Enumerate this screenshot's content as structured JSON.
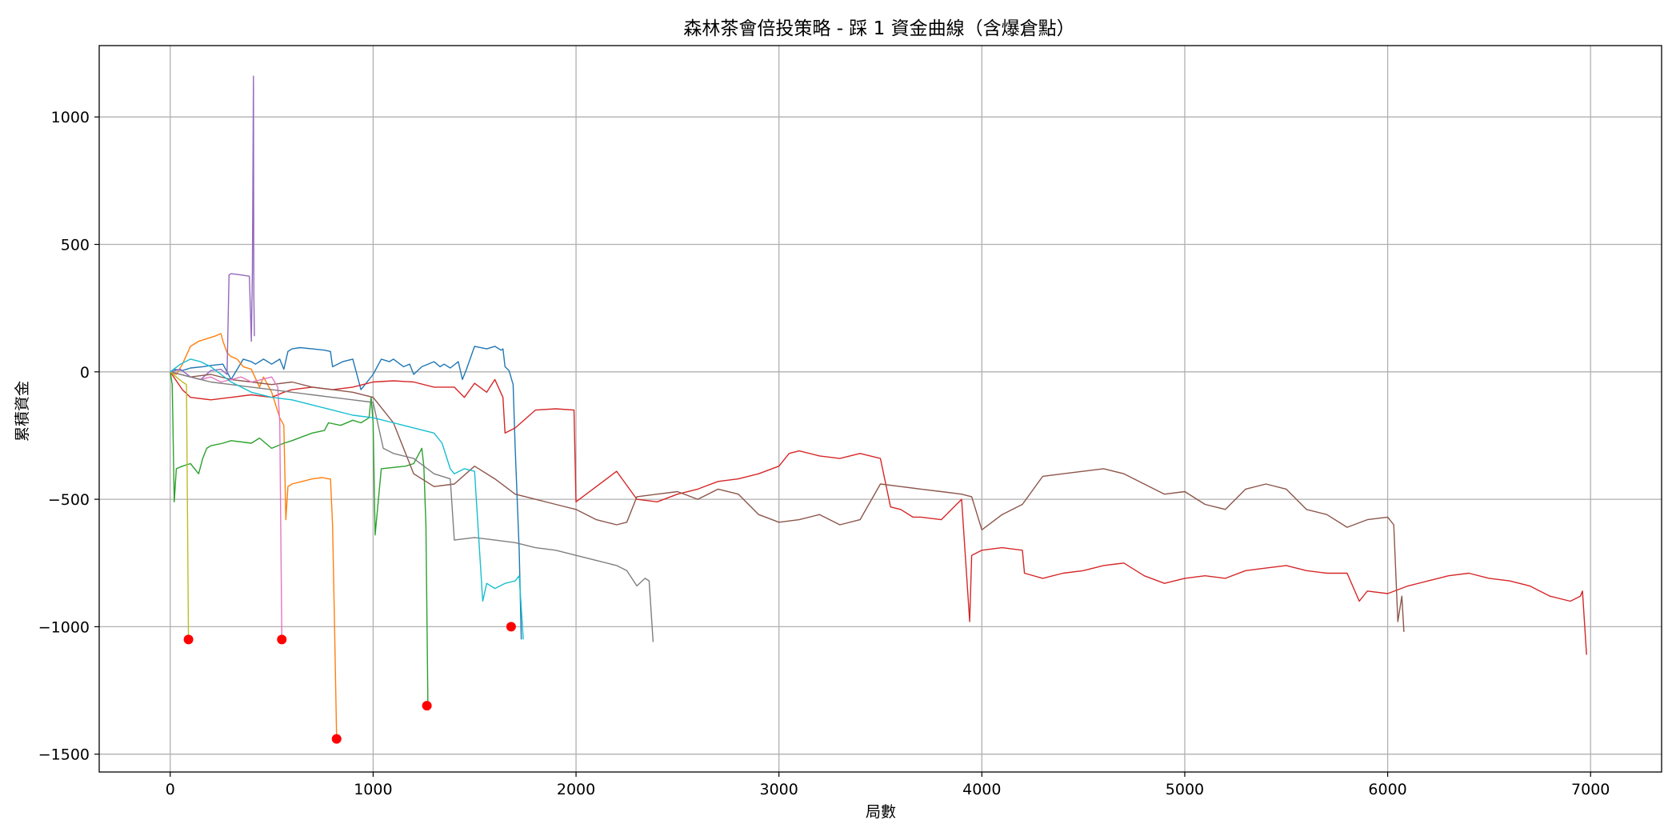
{
  "chart_data": {
    "type": "line",
    "title": "森林茶會倍投策略 - 踩 1 資金曲線（含爆倉點）",
    "xlabel": "局數",
    "ylabel": "累積資金",
    "xlim": [
      -350,
      7350
    ],
    "ylim": [
      -1570,
      1280
    ],
    "x_ticks": [
      0,
      1000,
      2000,
      3000,
      4000,
      5000,
      6000,
      7000
    ],
    "y_ticks": [
      -1500,
      -1000,
      -500,
      0,
      500,
      1000
    ],
    "grid": true,
    "legend": "none",
    "series": [
      {
        "color": "#1f77b4",
        "x": [
          0,
          20,
          60,
          100,
          160,
          200,
          260,
          300,
          360,
          400,
          420,
          460,
          500,
          540,
          560,
          580,
          600,
          640,
          700,
          760,
          790,
          800,
          850,
          900,
          940,
          1000,
          1040,
          1080,
          1100,
          1150,
          1180,
          1200,
          1240,
          1300,
          1330,
          1350,
          1380,
          1420,
          1440,
          1460,
          1500,
          1560,
          1600,
          1630,
          1640,
          1650,
          1670,
          1690,
          1700,
          1720,
          1730
        ],
        "y": [
          0,
          10,
          5,
          15,
          20,
          25,
          30,
          -30,
          50,
          40,
          30,
          50,
          30,
          50,
          10,
          80,
          90,
          95,
          90,
          85,
          80,
          20,
          40,
          50,
          -70,
          -10,
          50,
          40,
          50,
          20,
          30,
          -10,
          20,
          40,
          20,
          30,
          15,
          40,
          -30,
          10,
          100,
          90,
          100,
          85,
          90,
          20,
          5,
          -50,
          -300,
          -700,
          -1050
        ]
      },
      {
        "color": "#ff7f0e",
        "x": [
          0,
          30,
          60,
          100,
          140,
          180,
          220,
          250,
          260,
          280,
          300,
          330,
          360,
          400,
          440,
          460,
          500,
          540,
          560,
          570,
          580,
          600,
          650,
          700,
          750,
          780,
          790,
          800,
          810,
          820
        ],
        "y": [
          0,
          -10,
          30,
          100,
          120,
          130,
          140,
          150,
          120,
          75,
          60,
          50,
          20,
          10,
          -60,
          -20,
          -80,
          -180,
          -210,
          -580,
          -450,
          -440,
          -430,
          -420,
          -415,
          -420,
          -420,
          -600,
          -1000,
          -1440
        ]
      },
      {
        "color": "#2ca02c",
        "x": [
          0,
          10,
          20,
          30,
          60,
          100,
          140,
          160,
          180,
          200,
          260,
          300,
          400,
          440,
          500,
          560,
          600,
          700,
          760,
          780,
          840,
          900,
          940,
          980,
          990,
          1000,
          1010,
          1040,
          1100,
          1160,
          1200,
          1240,
          1250,
          1260,
          1270
        ],
        "y": [
          0,
          -50,
          -510,
          -380,
          -370,
          -360,
          -400,
          -340,
          -300,
          -290,
          -280,
          -270,
          -280,
          -260,
          -300,
          -280,
          -270,
          -240,
          -230,
          -200,
          -210,
          -190,
          -200,
          -180,
          -100,
          -200,
          -640,
          -380,
          -375,
          -370,
          -360,
          -300,
          -370,
          -600,
          -1310
        ]
      },
      {
        "color": "#d62728",
        "x": [
          0,
          60,
          100,
          200,
          300,
          400,
          500,
          560,
          600,
          700,
          800,
          900,
          950,
          1000,
          1100,
          1200,
          1300,
          1400,
          1450,
          1500,
          1560,
          1600,
          1640,
          1650,
          1700,
          1800,
          1900,
          1990,
          2000,
          2100,
          2200,
          2300,
          2400,
          2500,
          2600,
          2700,
          2800,
          2900,
          3000,
          3050,
          3100,
          3200,
          3300,
          3400,
          3500,
          3550,
          3600,
          3660,
          3700,
          3800,
          3900,
          3940,
          3950,
          4000,
          4100,
          4200,
          4210,
          4300,
          4400,
          4500,
          4600,
          4700,
          4800,
          4900,
          5000,
          5100,
          5200,
          5300,
          5400,
          5500,
          5600,
          5700,
          5800,
          5860,
          5900,
          6000,
          6100,
          6200,
          6300,
          6400,
          6500,
          6600,
          6700,
          6800,
          6900,
          6950,
          6960,
          6980
        ],
        "y": [
          0,
          -70,
          -100,
          -110,
          -100,
          -90,
          -100,
          -80,
          -70,
          -60,
          -70,
          -60,
          -50,
          -40,
          -35,
          -40,
          -60,
          -60,
          -100,
          -45,
          -80,
          -30,
          -100,
          -240,
          -220,
          -150,
          -145,
          -150,
          -510,
          -450,
          -390,
          -500,
          -510,
          -480,
          -460,
          -430,
          -420,
          -400,
          -370,
          -320,
          -310,
          -330,
          -340,
          -320,
          -340,
          -530,
          -540,
          -570,
          -570,
          -580,
          -500,
          -980,
          -720,
          -700,
          -690,
          -700,
          -790,
          -810,
          -790,
          -780,
          -760,
          -750,
          -800,
          -830,
          -810,
          -800,
          -810,
          -780,
          -770,
          -760,
          -780,
          -790,
          -790,
          -900,
          -860,
          -870,
          -840,
          -820,
          -800,
          -790,
          -810,
          -820,
          -840,
          -880,
          -900,
          -880,
          -860,
          -1110
        ]
      },
      {
        "color": "#9467bd",
        "x": [
          0,
          50,
          100,
          150,
          200,
          250,
          280,
          290,
          300,
          350,
          390,
          400,
          405,
          410,
          412,
          415
        ],
        "y": [
          0,
          10,
          -20,
          -30,
          5,
          10,
          -10,
          380,
          385,
          380,
          375,
          120,
          400,
          1160,
          300,
          140
        ]
      },
      {
        "color": "#8c564b",
        "x": [
          0,
          50,
          100,
          200,
          300,
          400,
          500,
          600,
          700,
          800,
          900,
          1000,
          1100,
          1200,
          1300,
          1400,
          1500,
          1600,
          1700,
          1800,
          1900,
          2000,
          2100,
          2200,
          2250,
          2300,
          2400,
          2500,
          2600,
          2700,
          2800,
          2900,
          3000,
          3100,
          3200,
          3300,
          3400,
          3500,
          3600,
          3700,
          3800,
          3900,
          3950,
          4000,
          4100,
          4200,
          4300,
          4400,
          4500,
          4600,
          4700,
          4800,
          4900,
          5000,
          5100,
          5200,
          5300,
          5400,
          5500,
          5600,
          5700,
          5800,
          5900,
          6000,
          6030,
          6050,
          6070,
          6080
        ],
        "y": [
          0,
          -10,
          -20,
          -10,
          -30,
          -40,
          -50,
          -40,
          -60,
          -70,
          -80,
          -100,
          -200,
          -400,
          -450,
          -440,
          -370,
          -420,
          -480,
          -500,
          -520,
          -540,
          -580,
          -600,
          -590,
          -490,
          -480,
          -470,
          -500,
          -460,
          -480,
          -560,
          -590,
          -580,
          -560,
          -600,
          -580,
          -440,
          -450,
          -460,
          -470,
          -480,
          -490,
          -620,
          -560,
          -520,
          -410,
          -400,
          -390,
          -380,
          -400,
          -440,
          -480,
          -470,
          -520,
          -540,
          -460,
          -440,
          -460,
          -540,
          -560,
          -610,
          -580,
          -570,
          -600,
          -980,
          -880,
          -1020
        ]
      },
      {
        "color": "#e377c2",
        "x": [
          0,
          50,
          100,
          150,
          200,
          250,
          300,
          350,
          400,
          450,
          500,
          530,
          540,
          550
        ],
        "y": [
          0,
          -10,
          -20,
          -30,
          -20,
          -40,
          -30,
          -20,
          -40,
          -30,
          -20,
          -60,
          -200,
          -1050
        ]
      },
      {
        "color": "#7f7f7f",
        "x": [
          0,
          100,
          200,
          300,
          400,
          500,
          600,
          700,
          800,
          900,
          1000,
          1050,
          1100,
          1200,
          1300,
          1380,
          1400,
          1500,
          1600,
          1700,
          1800,
          1900,
          2000,
          2100,
          2200,
          2250,
          2300,
          2340,
          2360,
          2380
        ],
        "y": [
          0,
          -20,
          -40,
          -50,
          -60,
          -70,
          -80,
          -90,
          -100,
          -110,
          -120,
          -300,
          -320,
          -340,
          -400,
          -420,
          -660,
          -650,
          -660,
          -670,
          -690,
          -700,
          -720,
          -740,
          -760,
          -780,
          -840,
          -810,
          -820,
          -1060
        ]
      },
      {
        "color": "#bcbd22",
        "x": [
          0,
          30,
          60,
          80,
          90
        ],
        "y": [
          0,
          -20,
          -40,
          -50,
          -1050
        ]
      },
      {
        "color": "#17becf",
        "x": [
          0,
          50,
          100,
          150,
          200,
          300,
          400,
          500,
          600,
          700,
          800,
          900,
          1000,
          1100,
          1200,
          1300,
          1340,
          1380,
          1400,
          1450,
          1500,
          1540,
          1560,
          1600,
          1650,
          1700,
          1720,
          1740
        ],
        "y": [
          0,
          30,
          50,
          40,
          20,
          -40,
          -80,
          -100,
          -110,
          -130,
          -150,
          -170,
          -180,
          -200,
          -220,
          -240,
          -280,
          -380,
          -400,
          -380,
          -390,
          -900,
          -830,
          -850,
          -830,
          -820,
          -800,
          -1050
        ]
      }
    ],
    "bankrupt_points": {
      "color": "#ff0000",
      "x": [
        90,
        550,
        820,
        1265,
        1680
      ],
      "y": [
        -1050,
        -1050,
        -1440,
        -1310,
        -1000
      ]
    }
  }
}
